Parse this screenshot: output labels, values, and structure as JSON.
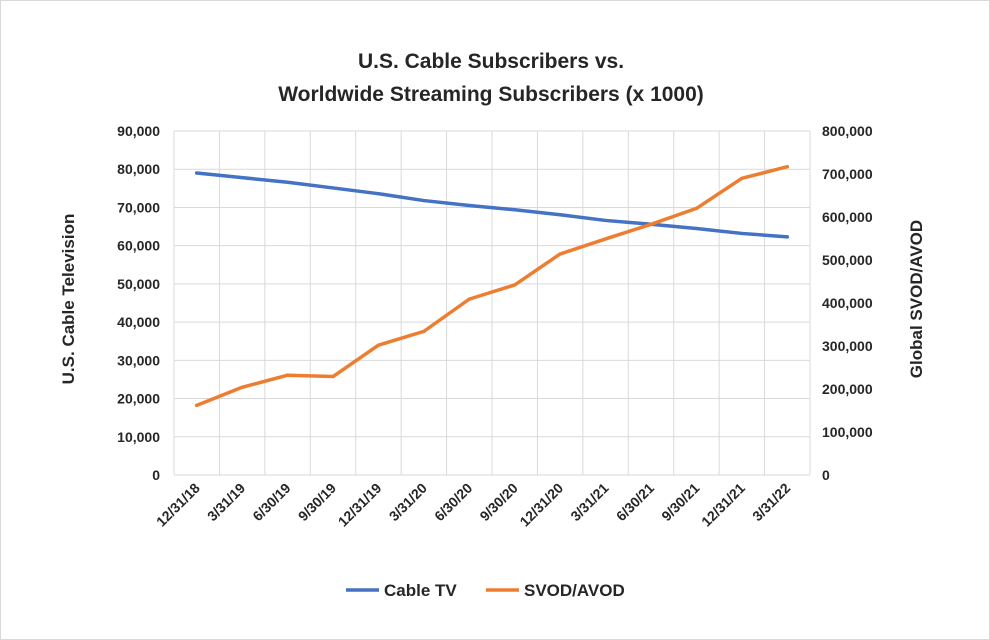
{
  "chart_data": {
    "type": "line",
    "title_lines": [
      "U.S. Cable Subscribers vs.",
      "Worldwide Streaming Subscribers (x 1000)"
    ],
    "categories": [
      "12/31/18",
      "3/31/19",
      "6/30/19",
      "9/30/19",
      "12/31/19",
      "3/31/20",
      "6/30/20",
      "9/30/20",
      "12/31/20",
      "3/31/21",
      "6/30/21",
      "9/30/21",
      "12/31/21",
      "3/31/22"
    ],
    "ylabel": "U.S. Cable Television",
    "y2label": "Global SVOD/AVOD",
    "ylim": [
      0,
      90000
    ],
    "y2lim": [
      0,
      800000
    ],
    "yticks": [
      "0",
      "10,000",
      "20,000",
      "30,000",
      "40,000",
      "50,000",
      "60,000",
      "70,000",
      "80,000",
      "90,000"
    ],
    "y2ticks": [
      "0",
      "100,000",
      "200,000",
      "300,000",
      "400,000",
      "500,000",
      "600,000",
      "700,000",
      "800,000"
    ],
    "grid": true,
    "legend_position": "bottom",
    "series": [
      {
        "name": "Cable TV",
        "axis": "left",
        "color": "#4472c4",
        "values": [
          79000,
          77800,
          76600,
          75100,
          73600,
          71800,
          70500,
          69400,
          68100,
          66600,
          65600,
          64500,
          63200,
          62300
        ]
      },
      {
        "name": "SVOD/AVOD",
        "axis": "right",
        "color": "#ed7d31",
        "values": [
          162000,
          204000,
          232000,
          229000,
          302000,
          334000,
          409000,
          442000,
          514000,
          549000,
          583000,
          620000,
          690000,
          717000
        ]
      }
    ]
  }
}
